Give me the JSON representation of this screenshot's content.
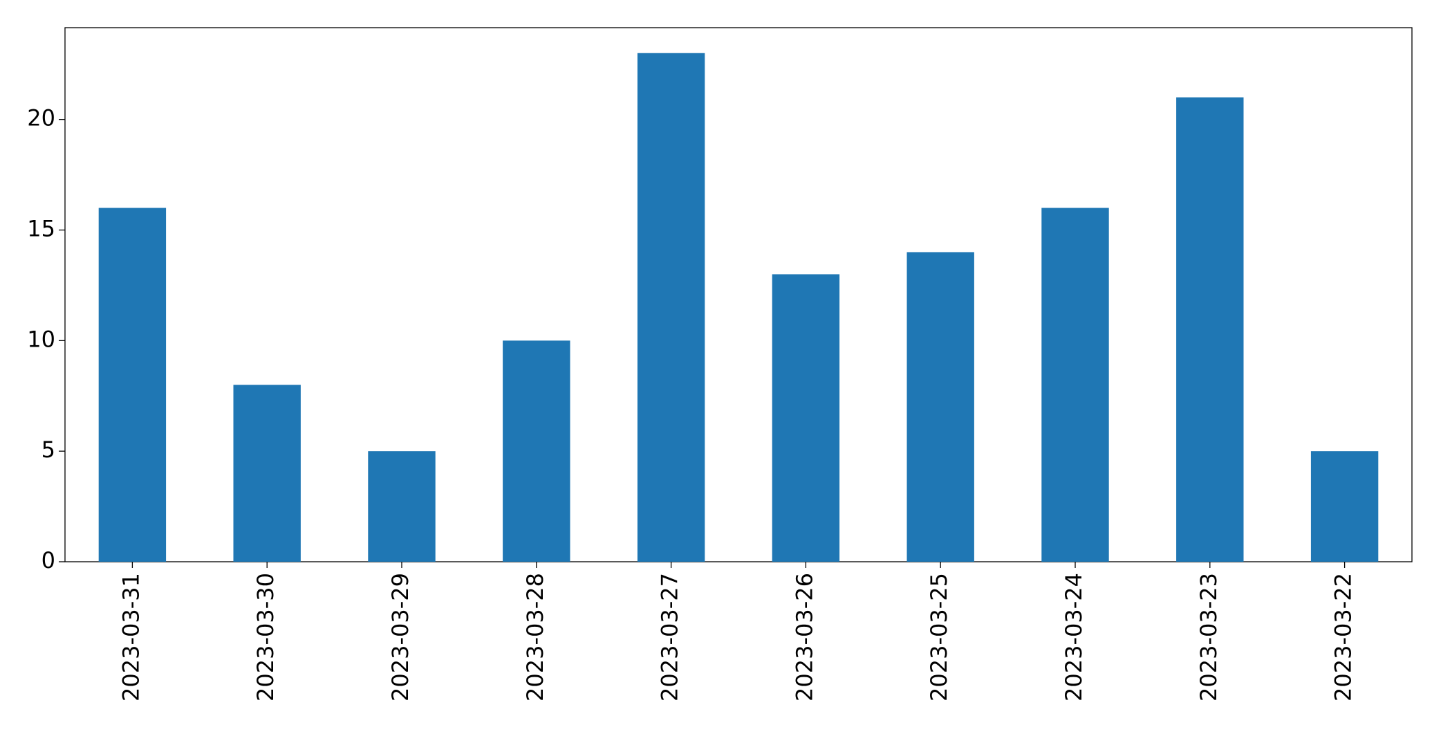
{
  "chart_data": {
    "type": "bar",
    "categories": [
      "2023-03-31",
      "2023-03-30",
      "2023-03-29",
      "2023-03-28",
      "2023-03-27",
      "2023-03-26",
      "2023-03-25",
      "2023-03-24",
      "2023-03-23",
      "2023-03-22"
    ],
    "values": [
      16,
      8,
      5,
      10,
      23,
      13,
      14,
      16,
      21,
      5
    ],
    "color": "#1f77b4",
    "ylim": [
      0,
      24.15
    ],
    "yticks": [
      0,
      5,
      10,
      15,
      20
    ],
    "grid": false
  }
}
